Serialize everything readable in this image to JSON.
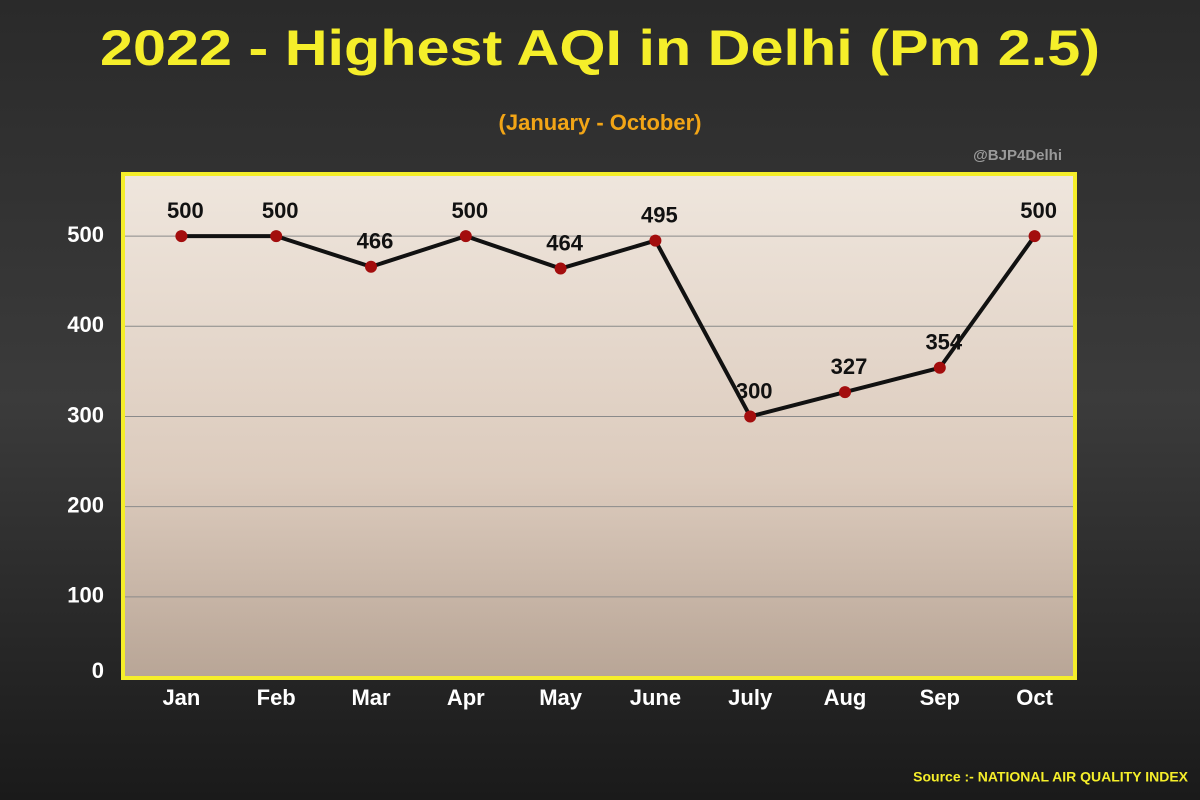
{
  "chart_data": {
    "type": "line",
    "title": "2022 - Highest AQI in Delhi (Pm 2.5)",
    "subtitle": "(January - October)",
    "watermark": "@BJP4Delhi",
    "source": "Source :- NATIONAL AIR QUALITY INDEX",
    "categories": [
      "Jan",
      "Feb",
      "Mar",
      "Apr",
      "May",
      "June",
      "July",
      "Aug",
      "Sep",
      "Oct"
    ],
    "values": [
      500,
      500,
      466,
      500,
      464,
      495,
      300,
      327,
      354,
      500
    ],
    "color": "#111111",
    "marker_color": "#a30d0d",
    "ylim": [
      0,
      550
    ],
    "yticks": [
      0,
      100,
      200,
      300,
      400,
      500
    ],
    "grid": true
  }
}
